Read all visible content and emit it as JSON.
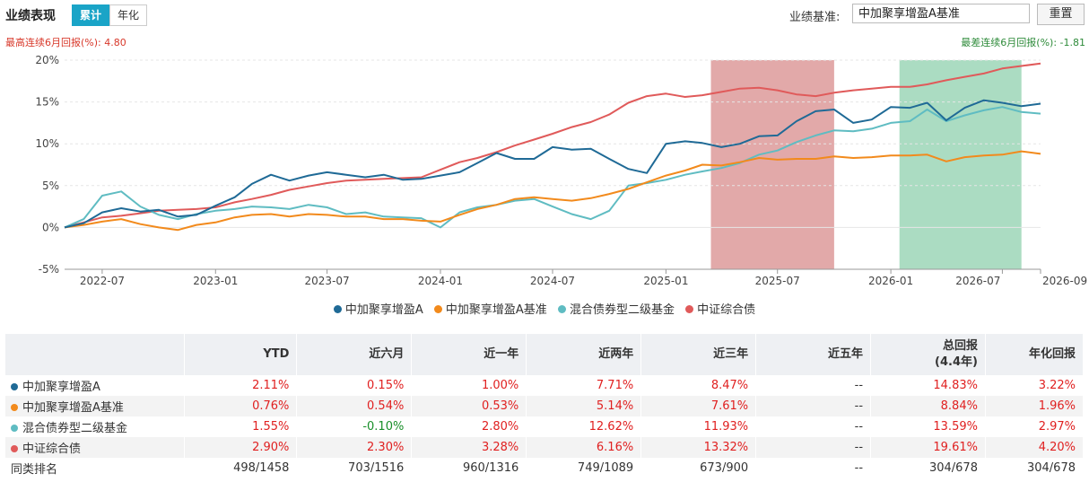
{
  "header": {
    "title": "业绩表现",
    "tabs": [
      {
        "label": "累计",
        "active": true
      },
      {
        "label": "年化",
        "active": false
      }
    ],
    "benchmark_label": "业绩基准:",
    "benchmark_value": "中加聚享增盈A基准",
    "reset_label": "重置"
  },
  "notes": {
    "best": "最高连续6月回报(%): 4.80",
    "worst": "最差连续6月回报(%): -1.81"
  },
  "colors": {
    "fund": "#1f6a96",
    "bench": "#f28a1c",
    "peer": "#5fbcc2",
    "bond": "#e05a5a",
    "highlight_best": "#d27b7b",
    "highlight_worst": "#7ec9a1",
    "pos": "#e02020",
    "neg": "#1a8f2a"
  },
  "chart_data": {
    "type": "line",
    "title": "",
    "xlabel": "",
    "ylabel": "",
    "x_ticks": [
      "2022-07",
      "2023-01",
      "2023-07",
      "2024-01",
      "2024-07",
      "2025-01",
      "2025-07",
      "2026-01",
      "2026-07",
      "2026-09"
    ],
    "x_tick_dates": [
      "2022-07-01",
      "2023-01-01",
      "2023-07-01",
      "2024-01-01",
      "2024-07-01",
      "2025-01-01",
      "2025-07-01",
      "2026-01-01",
      "2026-07-01",
      "2026-09-01"
    ],
    "x_range": [
      "2022-05-01",
      "2026-09-01"
    ],
    "y_ticks": [
      "20%",
      "15%",
      "10%",
      "5%",
      "0%",
      "-5%"
    ],
    "y_tick_values": [
      20,
      15,
      10,
      5,
      0,
      -5
    ],
    "ylim": [
      -5,
      20
    ],
    "grid": true,
    "legend_position": "bottom-center",
    "highlight_ranges": [
      {
        "start": "2025-03-15",
        "end": "2025-10-01",
        "kind": "best"
      },
      {
        "start": "2026-01-15",
        "end": "2026-08-01",
        "kind": "worst"
      }
    ],
    "x_points": [
      "2022-05-01",
      "2022-06-01",
      "2022-07-01",
      "2022-08-01",
      "2022-09-01",
      "2022-10-01",
      "2022-11-01",
      "2022-12-01",
      "2023-01-01",
      "2023-02-01",
      "2023-03-01",
      "2023-04-01",
      "2023-05-01",
      "2023-06-01",
      "2023-07-01",
      "2023-08-01",
      "2023-09-01",
      "2023-10-01",
      "2023-11-01",
      "2023-12-01",
      "2024-01-01",
      "2024-02-01",
      "2024-03-01",
      "2024-04-01",
      "2024-05-01",
      "2024-06-01",
      "2024-07-01",
      "2024-08-01",
      "2024-09-01",
      "2024-10-01",
      "2024-11-01",
      "2024-12-01",
      "2025-01-01",
      "2025-02-01",
      "2025-03-01",
      "2025-04-01",
      "2025-05-01",
      "2025-06-01",
      "2025-07-01",
      "2025-08-01",
      "2025-09-01",
      "2025-10-01",
      "2025-11-01",
      "2025-12-01",
      "2026-01-01",
      "2026-02-01",
      "2026-03-01",
      "2026-04-01",
      "2026-05-01",
      "2026-06-01",
      "2026-07-01",
      "2026-08-01",
      "2026-09-01"
    ],
    "series": [
      {
        "name": "中加聚享增盈A",
        "key": "fund",
        "values": [
          0.0,
          0.5,
          1.8,
          2.3,
          1.9,
          2.1,
          1.3,
          1.5,
          2.6,
          3.6,
          5.2,
          6.3,
          5.6,
          6.2,
          6.6,
          6.3,
          6.0,
          6.3,
          5.7,
          5.8,
          6.2,
          6.6,
          7.7,
          8.9,
          8.2,
          8.2,
          9.6,
          9.3,
          9.4,
          8.2,
          7.0,
          6.5,
          10.0,
          10.3,
          10.1,
          9.6,
          10.0,
          10.9,
          11.0,
          12.7,
          13.9,
          14.1,
          12.5,
          12.9,
          14.4,
          14.3,
          14.9,
          12.8,
          14.3,
          15.2,
          14.9,
          14.5,
          14.8
        ]
      },
      {
        "name": "中加聚享增盈A基准",
        "key": "bench",
        "values": [
          0.0,
          0.3,
          0.7,
          1.0,
          0.4,
          0.0,
          -0.3,
          0.3,
          0.6,
          1.2,
          1.5,
          1.6,
          1.3,
          1.6,
          1.5,
          1.3,
          1.3,
          1.0,
          1.0,
          0.8,
          0.7,
          1.5,
          2.2,
          2.7,
          3.4,
          3.6,
          3.4,
          3.2,
          3.5,
          4.0,
          4.6,
          5.4,
          6.2,
          6.8,
          7.5,
          7.4,
          7.8,
          8.3,
          8.1,
          8.2,
          8.2,
          8.5,
          8.3,
          8.4,
          8.6,
          8.6,
          8.7,
          7.9,
          8.4,
          8.6,
          8.7,
          9.1,
          8.8
        ]
      },
      {
        "name": "混合债券型二级基金",
        "key": "peer",
        "values": [
          0.0,
          1.0,
          3.8,
          4.3,
          2.5,
          1.5,
          1.0,
          1.6,
          2.0,
          2.2,
          2.5,
          2.4,
          2.2,
          2.7,
          2.4,
          1.6,
          1.8,
          1.3,
          1.2,
          1.1,
          0.0,
          1.8,
          2.4,
          2.7,
          3.2,
          3.4,
          2.5,
          1.6,
          1.0,
          2.0,
          5.0,
          5.3,
          5.7,
          6.3,
          6.7,
          7.1,
          7.7,
          8.7,
          9.2,
          10.2,
          11.0,
          11.6,
          11.5,
          11.8,
          12.5,
          12.7,
          14.1,
          12.7,
          13.4,
          14.0,
          14.4,
          13.8,
          13.6
        ]
      },
      {
        "name": "中证综合债",
        "key": "bond",
        "values": [
          0.0,
          0.6,
          1.2,
          1.4,
          1.7,
          2.0,
          2.1,
          2.2,
          2.4,
          3.0,
          3.4,
          3.9,
          4.5,
          4.9,
          5.3,
          5.6,
          5.7,
          5.8,
          5.9,
          6.0,
          6.9,
          7.8,
          8.3,
          9.0,
          9.8,
          10.5,
          11.2,
          12.0,
          12.6,
          13.5,
          14.9,
          15.7,
          16.0,
          15.6,
          15.8,
          16.2,
          16.6,
          16.7,
          16.4,
          15.9,
          15.7,
          16.1,
          16.4,
          16.6,
          16.8,
          16.8,
          17.1,
          17.6,
          18.0,
          18.4,
          19.0,
          19.3,
          19.6
        ]
      }
    ]
  },
  "table": {
    "headers": {
      "name": "",
      "ytd": "YTD",
      "m6": "近六月",
      "y1": "近一年",
      "y2": "近两年",
      "y3": "近三年",
      "y5": "近五年",
      "total": "总回报",
      "total_sub": "(4.4年)",
      "annual": "年化回报"
    },
    "rows": [
      {
        "name": "中加聚享增盈A",
        "key": "fund",
        "ytd": "2.11%",
        "m6": "0.15%",
        "y1": "1.00%",
        "y2": "7.71%",
        "y3": "8.47%",
        "y5": "--",
        "total": "14.83%",
        "annual": "3.22%"
      },
      {
        "name": "中加聚享增盈A基准",
        "key": "bench",
        "ytd": "0.76%",
        "m6": "0.54%",
        "y1": "0.53%",
        "y2": "5.14%",
        "y3": "7.61%",
        "y5": "--",
        "total": "8.84%",
        "annual": "1.96%"
      },
      {
        "name": "混合债券型二级基金",
        "key": "peer",
        "ytd": "1.55%",
        "m6": "-0.10%",
        "y1": "2.80%",
        "y2": "12.62%",
        "y3": "11.93%",
        "y5": "--",
        "total": "13.59%",
        "annual": "2.97%"
      },
      {
        "name": "中证综合债",
        "key": "bond",
        "ytd": "2.90%",
        "m6": "2.30%",
        "y1": "3.28%",
        "y2": "6.16%",
        "y3": "13.32%",
        "y5": "--",
        "total": "19.61%",
        "annual": "4.20%"
      }
    ],
    "rank_row": {
      "name": "同类排名",
      "ytd": "498/1458",
      "m6": "703/1516",
      "y1": "960/1316",
      "y2": "749/1089",
      "y3": "673/900",
      "y5": "--",
      "total": "304/678",
      "annual": "304/678"
    }
  }
}
